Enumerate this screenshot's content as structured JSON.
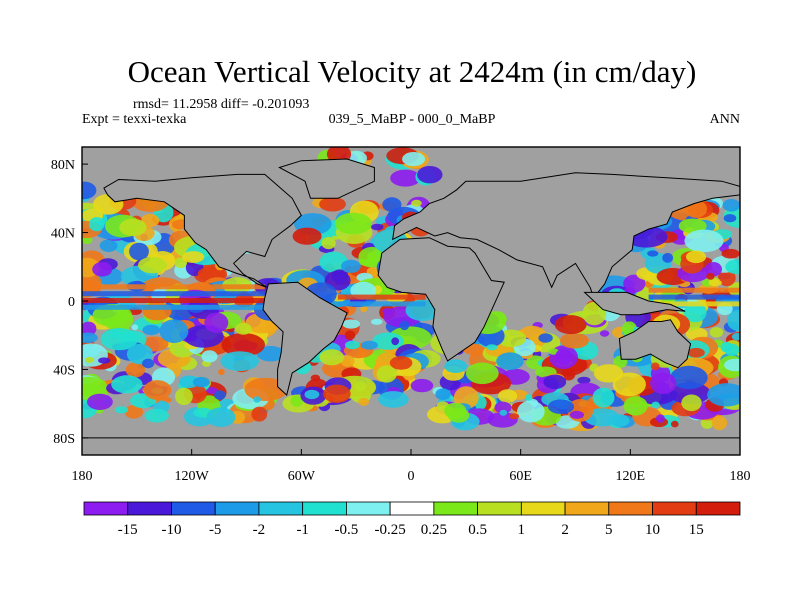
{
  "chart_data": {
    "type": "heatmap",
    "title": "Ocean Vertical Velocity at 2424m (in cm/day)",
    "stats": "rmsd= 11.2958 diff= -0.201093",
    "experiment": "Expt = texxi-texka",
    "comparison": "039_5_MaBP - 000_0_MaBP",
    "season": "ANN",
    "units": "cm/day",
    "x_range": [
      -180,
      180
    ],
    "y_range": [
      -90,
      90
    ],
    "x_ticks": [
      {
        "value": -180,
        "label": "180"
      },
      {
        "value": -120,
        "label": "120W"
      },
      {
        "value": -60,
        "label": "60W"
      },
      {
        "value": 0,
        "label": "0"
      },
      {
        "value": 60,
        "label": "60E"
      },
      {
        "value": 120,
        "label": "120E"
      },
      {
        "value": 180,
        "label": "180"
      }
    ],
    "y_ticks": [
      {
        "value": 80,
        "label": "80N"
      },
      {
        "value": 40,
        "label": "40N"
      },
      {
        "value": 0,
        "label": "0"
      },
      {
        "value": -40,
        "label": "40S"
      },
      {
        "value": -80,
        "label": "80S"
      }
    ],
    "colorbar": {
      "levels": [
        "-15",
        "-10",
        "-5",
        "-2",
        "-1",
        "-0.5",
        "-0.25",
        "0.25",
        "0.5",
        "1",
        "2",
        "5",
        "10",
        "15"
      ],
      "colors": [
        "#8c1cf0",
        "#4a18d8",
        "#1f5ae6",
        "#1e9be8",
        "#25c4e0",
        "#20e0d0",
        "#7ff0f0",
        "#ffffff",
        "#7be81a",
        "#b8e020",
        "#e8d81a",
        "#f0a81a",
        "#f07818",
        "#e23d12",
        "#d41c0c"
      ]
    },
    "land_color": "#a0a0a0"
  }
}
